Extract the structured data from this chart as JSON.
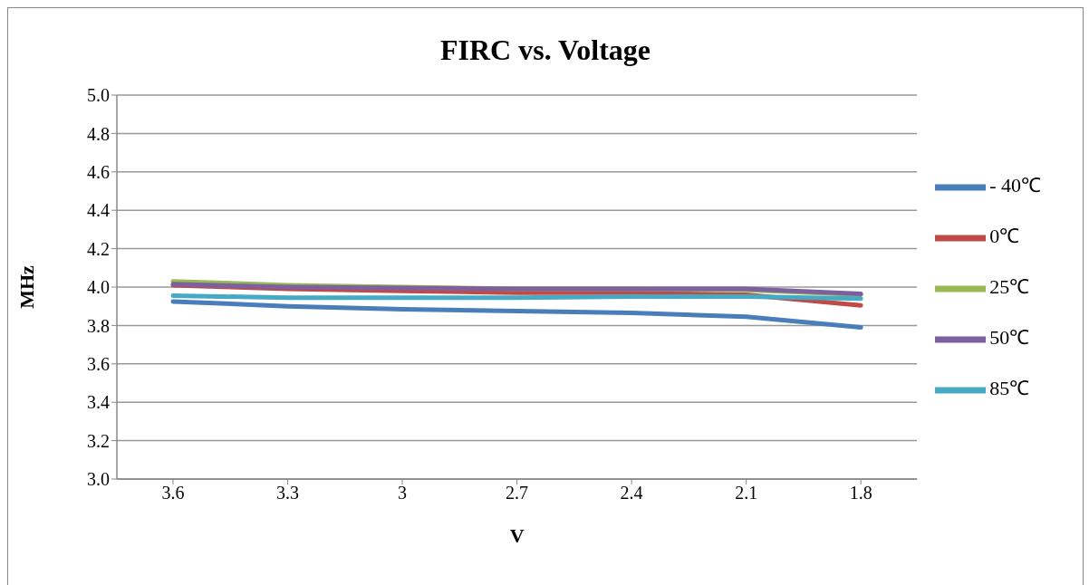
{
  "chart_data": {
    "type": "line",
    "title": "FIRC vs. Voltage",
    "xlabel": "V",
    "ylabel": "MHz",
    "categories": [
      "3.6",
      "3.3",
      "3",
      "2.7",
      "2.4",
      "2.1",
      "1.8"
    ],
    "series": [
      {
        "name": "- 40℃",
        "color": "#4a7ebb",
        "values": [
          3.925,
          3.9,
          3.885,
          3.875,
          3.865,
          3.845,
          3.79
        ]
      },
      {
        "name": "0℃",
        "color": "#be4b48",
        "values": [
          4.01,
          3.99,
          3.98,
          3.97,
          3.97,
          3.96,
          3.905
        ]
      },
      {
        "name": "25℃",
        "color": "#98b954",
        "values": [
          4.03,
          4.01,
          4.0,
          3.99,
          3.99,
          3.985,
          3.96
        ]
      },
      {
        "name": "50℃",
        "color": "#7d60a0",
        "values": [
          4.015,
          4.0,
          3.995,
          3.99,
          3.99,
          3.99,
          3.965
        ]
      },
      {
        "name": "85℃",
        "color": "#46aac5",
        "values": [
          3.955,
          3.945,
          3.945,
          3.945,
          3.95,
          3.95,
          3.94
        ]
      }
    ],
    "ylim": [
      3.0,
      5.0
    ],
    "yticks": [
      {
        "value": 3.0,
        "label": "3.0"
      },
      {
        "value": 3.2,
        "label": "3.2"
      },
      {
        "value": 3.4,
        "label": "3.4"
      },
      {
        "value": 3.6,
        "label": "3.6"
      },
      {
        "value": 3.8,
        "label": "3.8"
      },
      {
        "value": 4.0,
        "label": "4.0"
      },
      {
        "value": 4.2,
        "label": "4.2"
      },
      {
        "value": 4.4,
        "label": "4.4"
      },
      {
        "value": 4.6,
        "label": "4.6"
      },
      {
        "value": 4.8,
        "label": "4.8"
      },
      {
        "value": 5.0,
        "label": "5.0"
      }
    ],
    "grid": "y",
    "legend": "right",
    "marker": "none",
    "line_style": "solid"
  }
}
